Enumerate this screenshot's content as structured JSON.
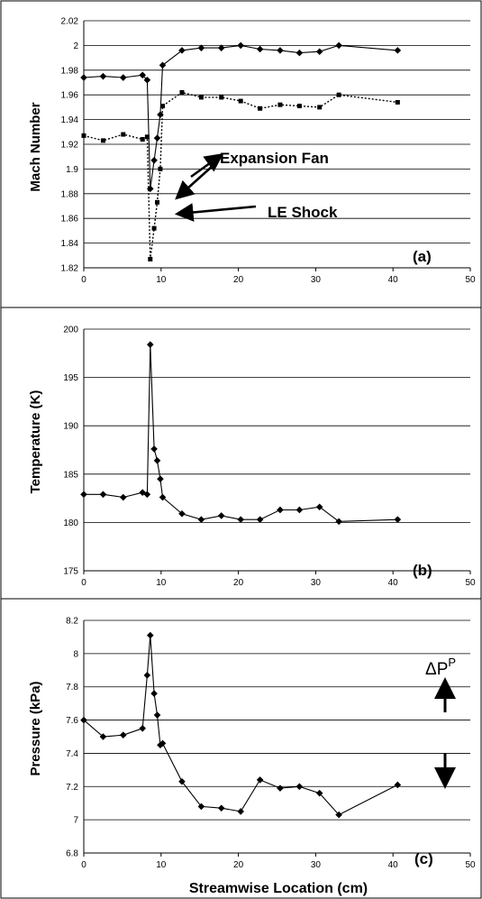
{
  "chart_data": [
    {
      "type": "line",
      "panel_label": "(a)",
      "ylabel": "Mach Number",
      "xlabel": "",
      "xlim": [
        0,
        50
      ],
      "ylim": [
        1.82,
        2.02
      ],
      "yticks": [
        "1.82",
        "1.84",
        "1.86",
        "1.88",
        "1.9",
        "1.92",
        "1.94",
        "1.96",
        "1.98",
        "2",
        "2.02"
      ],
      "xticks": [
        "0",
        "10",
        "20",
        "30",
        "40",
        "50"
      ],
      "grid": "horizontal",
      "annotations": [
        "Expansion Fan",
        "LE Shock"
      ],
      "series": [
        {
          "style": "solid",
          "marker": "diamond",
          "x": [
            0,
            2.5,
            5.1,
            7.6,
            8.2,
            8.6,
            9.1,
            9.5,
            9.9,
            10.2,
            12.7,
            15.2,
            17.8,
            20.3,
            22.8,
            25.4,
            27.9,
            30.5,
            33,
            40.6
          ],
          "y": [
            1.974,
            1.975,
            1.974,
            1.976,
            1.972,
            1.884,
            1.907,
            1.925,
            1.944,
            1.984,
            1.996,
            1.998,
            1.998,
            2.0,
            1.997,
            1.996,
            1.994,
            1.995,
            2.0,
            1.996
          ]
        },
        {
          "style": "dotted",
          "marker": "square",
          "x": [
            0,
            2.5,
            5.1,
            7.6,
            8.2,
            8.6,
            9.1,
            9.5,
            9.9,
            10.2,
            12.7,
            15.2,
            17.8,
            20.3,
            22.8,
            25.4,
            27.9,
            30.5,
            33,
            40.6
          ],
          "y": [
            1.927,
            1.923,
            1.928,
            1.924,
            1.926,
            1.827,
            1.852,
            1.873,
            1.9,
            1.951,
            1.962,
            1.958,
            1.958,
            1.955,
            1.949,
            1.952,
            1.951,
            1.95,
            1.96,
            1.954
          ]
        }
      ]
    },
    {
      "type": "line",
      "panel_label": "(b)",
      "ylabel": "Temperature (K)",
      "xlabel": "",
      "xlim": [
        0,
        50
      ],
      "ylim": [
        175,
        200
      ],
      "yticks": [
        "175",
        "180",
        "185",
        "190",
        "195",
        "200"
      ],
      "xticks": [
        "0",
        "10",
        "20",
        "30",
        "40",
        "50"
      ],
      "grid": "horizontal",
      "series": [
        {
          "style": "solid",
          "marker": "diamond",
          "x": [
            0,
            2.5,
            5.1,
            7.6,
            8.2,
            8.6,
            9.1,
            9.5,
            9.9,
            10.2,
            12.7,
            15.2,
            17.8,
            20.3,
            22.8,
            25.4,
            27.9,
            30.5,
            33,
            40.6
          ],
          "y": [
            182.9,
            182.9,
            182.6,
            183.1,
            182.9,
            198.4,
            187.6,
            186.4,
            184.5,
            182.6,
            180.9,
            180.3,
            180.7,
            180.3,
            180.3,
            181.3,
            181.3,
            181.6,
            180.1,
            180.3
          ]
        }
      ]
    },
    {
      "type": "line",
      "panel_label": "(c)",
      "ylabel": "Pressure (kPa)",
      "xlabel": "Streamwise Location (cm)",
      "xlim": [
        0,
        50
      ],
      "ylim": [
        6.8,
        8.2
      ],
      "yticks": [
        "6.8",
        "7",
        "7.2",
        "7.4",
        "7.6",
        "7.8",
        "8",
        "8.2"
      ],
      "xticks": [
        "0",
        "10",
        "20",
        "30",
        "40",
        "50"
      ],
      "grid": "horizontal",
      "annotations": [
        "ΔP",
        "P"
      ],
      "series": [
        {
          "style": "solid",
          "marker": "diamond",
          "x": [
            0,
            2.5,
            5.1,
            7.6,
            8.2,
            8.6,
            9.1,
            9.5,
            9.9,
            10.2,
            12.7,
            15.2,
            17.8,
            20.3,
            22.8,
            25.4,
            27.9,
            30.5,
            33,
            40.6
          ],
          "y": [
            7.6,
            7.5,
            7.51,
            7.55,
            7.87,
            8.11,
            7.76,
            7.63,
            7.45,
            7.46,
            7.23,
            7.08,
            7.07,
            7.05,
            7.24,
            7.19,
            7.2,
            7.16,
            7.03,
            7.21
          ]
        }
      ]
    }
  ]
}
